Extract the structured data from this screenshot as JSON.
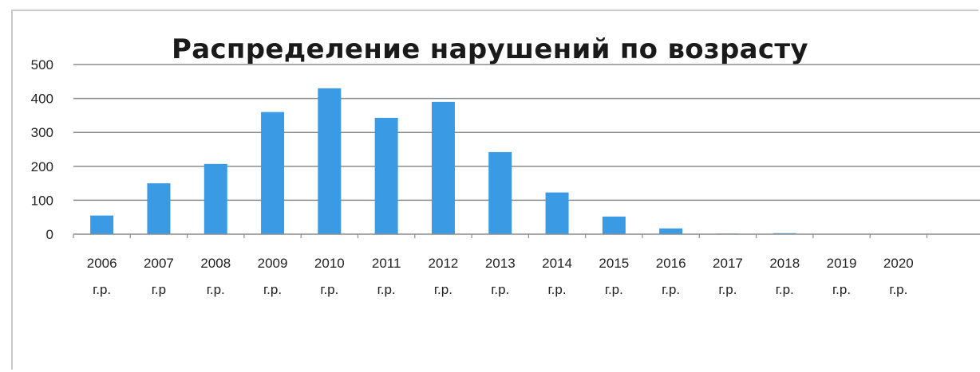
{
  "chart_data": {
    "type": "bar",
    "title": "Распределение нарушений по возрасту",
    "xlabel": "",
    "ylabel": "",
    "categories": [
      [
        "2006",
        "г.р."
      ],
      [
        "2007",
        "г.р"
      ],
      [
        "2008",
        "г.р."
      ],
      [
        "2009",
        "г.р."
      ],
      [
        "2010",
        "г.р."
      ],
      [
        "2011",
        "г.р."
      ],
      [
        "2012",
        "г.р."
      ],
      [
        "2013",
        "г.р."
      ],
      [
        "2014",
        "г.р."
      ],
      [
        "2015",
        "г.р."
      ],
      [
        "2016",
        "г.р."
      ],
      [
        "2017",
        "г.р."
      ],
      [
        "2018",
        "г.р."
      ],
      [
        "2019",
        "г.р."
      ],
      [
        "2020",
        "г.р."
      ]
    ],
    "values": [
      55,
      150,
      207,
      360,
      430,
      343,
      390,
      242,
      123,
      52,
      17,
      2,
      3,
      0,
      0
    ],
    "ylim": [
      0,
      500
    ],
    "yticks": [
      0,
      100,
      200,
      300,
      400,
      500
    ],
    "grid": true,
    "legend": "none",
    "bar_color": "#3a9be4",
    "grid_color": "#8c8c8c"
  }
}
